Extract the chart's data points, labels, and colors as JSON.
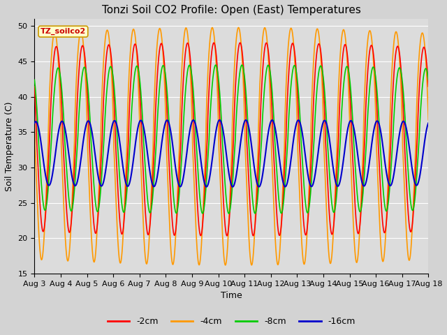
{
  "title": "Tonzi Soil CO2 Profile: Open (East) Temperatures",
  "xlabel": "Time",
  "ylabel": "Soil Temperature (C)",
  "ylim": [
    15,
    51
  ],
  "yticks": [
    15,
    20,
    25,
    30,
    35,
    40,
    45,
    50
  ],
  "colors": {
    "-2cm": "#ff0000",
    "-4cm": "#ff9900",
    "-8cm": "#00cc00",
    "-16cm": "#0000cc"
  },
  "legend_labels": [
    "-2cm",
    "-4cm",
    "-8cm",
    "-16cm"
  ],
  "watermark_text": "TZ_soilco2",
  "watermark_bg": "#ffffcc",
  "watermark_border": "#cc9900",
  "plot_bg": "#dcdcdc",
  "fig_bg": "#d3d3d3",
  "n_days": 15,
  "start_day": 3,
  "title_fontsize": 11,
  "axis_label_fontsize": 9,
  "tick_fontsize": 8,
  "mean_2cm": 34.0,
  "mean_4cm": 33.0,
  "mean_8cm": 34.0,
  "mean_16cm": 32.0,
  "amp_2cm": 13.0,
  "amp_4cm": 16.0,
  "amp_8cm": 10.0,
  "amp_16cm": 4.5,
  "phase_2cm": 0.58,
  "phase_4cm": 0.52,
  "phase_8cm": 0.65,
  "phase_16cm": 0.8,
  "skew_2cm": 0.4,
  "skew_4cm": 0.5,
  "skew_8cm": 0.3,
  "skew_16cm": 0.1
}
